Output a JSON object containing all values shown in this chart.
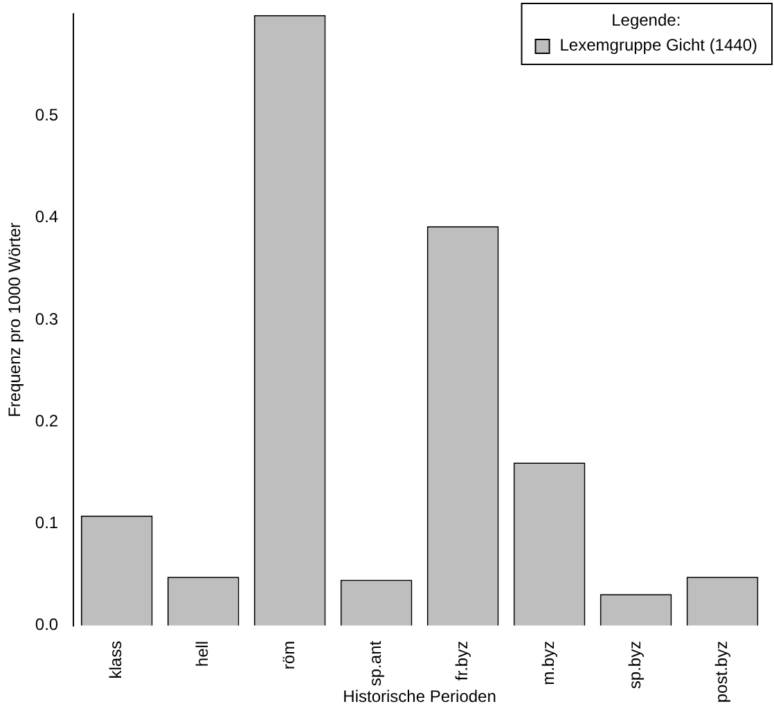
{
  "chart_data": {
    "type": "bar",
    "xlabel": "Historische Perioden",
    "ylabel": "Frequenz pro 1000 Wörter",
    "legend_title": "Legende:",
    "categories": [
      "klass",
      "hell",
      "röm",
      "sp.ant",
      "fr.byz",
      "m.byz",
      "sp.byz",
      "post.byz"
    ],
    "series": [
      {
        "name": "Lexemgruppe Gicht (1440)",
        "color": "#bebebe",
        "values": [
          0.108,
          0.048,
          0.599,
          0.045,
          0.392,
          0.16,
          0.031,
          0.048
        ]
      }
    ],
    "ylim": [
      0,
      0.6
    ],
    "yticks": [
      {
        "value": 0,
        "label": "0.0"
      },
      0.1,
      0.2,
      0.3,
      0.4,
      0.5
    ],
    "grid": false,
    "legend": "top right"
  }
}
